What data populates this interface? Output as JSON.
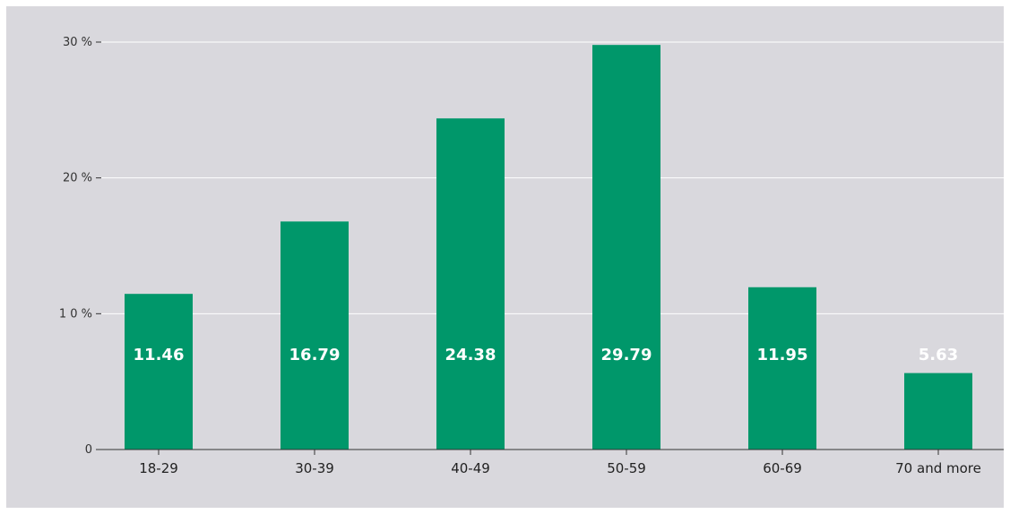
{
  "colors": {
    "background": "#d9d8dd",
    "bar": "#00976a",
    "grid": "#ffffff",
    "axis": "#333333"
  },
  "chart_data": {
    "type": "bar",
    "categories": [
      "18-29",
      "30-39",
      "40-49",
      "50-59",
      "60-69",
      "70 and more"
    ],
    "values": [
      11.46,
      16.79,
      24.38,
      29.79,
      11.95,
      5.63
    ],
    "value_labels": [
      "11.46",
      "16.79",
      "24.38",
      "29.79",
      "11.95",
      "5.63"
    ],
    "y_ticks": [
      0,
      10,
      20,
      30
    ],
    "y_tick_labels": [
      "0",
      "1 0 %",
      "20 %",
      "30 %"
    ],
    "ylim": [
      0,
      30
    ],
    "grid": true,
    "title": "",
    "xlabel": "",
    "ylabel": ""
  }
}
